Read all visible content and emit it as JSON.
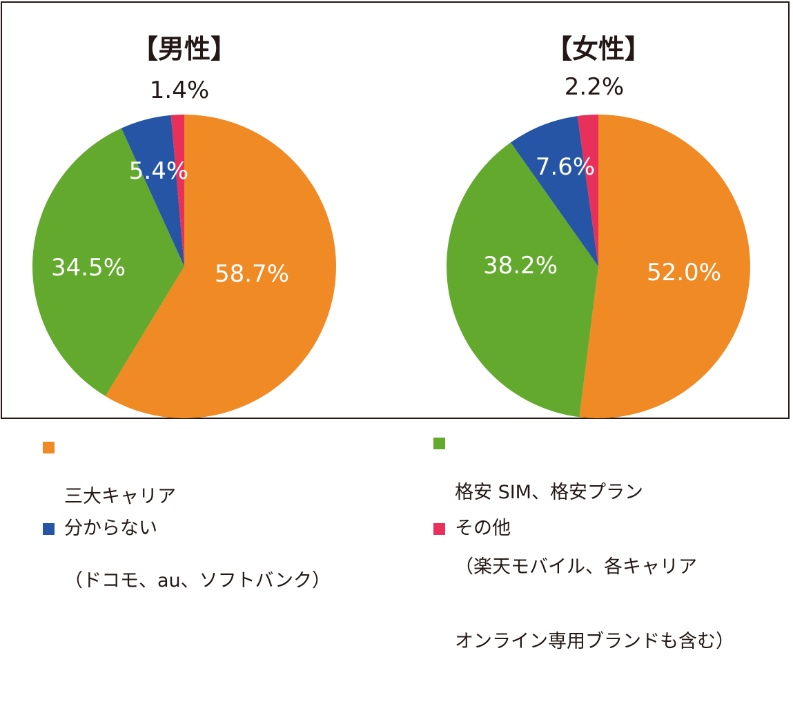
{
  "chart_data": [
    {
      "type": "pie",
      "title": "【男性】",
      "slices": [
        {
          "label": "三大キャリア",
          "value": 58.7,
          "value_label": "58.7%",
          "color": "#f08a24"
        },
        {
          "label": "格安 SIM、格安プラン",
          "value": 34.5,
          "value_label": "34.5%",
          "color": "#63a92e"
        },
        {
          "label": "分からない",
          "value": 5.4,
          "value_label": "5.4%",
          "color": "#2655a5"
        },
        {
          "label": "その他",
          "value": 1.4,
          "value_label": "1.4%",
          "color": "#e8305a"
        }
      ]
    },
    {
      "type": "pie",
      "title": "【女性】",
      "slices": [
        {
          "label": "三大キャリア",
          "value": 52.0,
          "value_label": "52.0%",
          "color": "#f08a24"
        },
        {
          "label": "格安 SIM、格安プラン",
          "value": 38.2,
          "value_label": "38.2%",
          "color": "#63a92e"
        },
        {
          "label": "分からない",
          "value": 7.6,
          "value_label": "7.6%",
          "color": "#2655a5"
        },
        {
          "label": "その他",
          "value": 2.2,
          "value_label": "2.2%",
          "color": "#e8305a"
        }
      ]
    }
  ],
  "legend": [
    {
      "color": "#f08a24",
      "lines": [
        "三大キャリア",
        "（ドコモ、au、ソフトバンク）"
      ]
    },
    {
      "color": "#63a92e",
      "lines": [
        "格安 SIM、格安プラン",
        "（楽天モバイル、各キャリア",
        "オンライン専用ブランドも含む）"
      ]
    },
    {
      "color": "#2655a5",
      "lines": [
        "分からない"
      ]
    },
    {
      "color": "#e8305a",
      "lines": [
        "その他"
      ]
    }
  ]
}
